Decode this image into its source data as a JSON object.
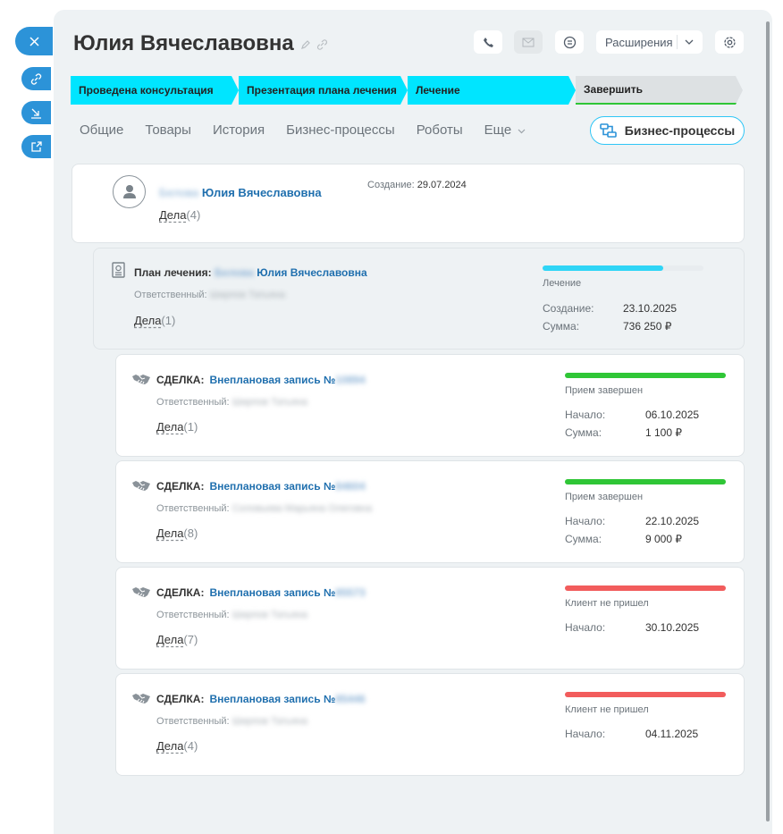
{
  "side": {
    "close_icon": "close-icon",
    "link_icon": "link-icon",
    "download_icon": "download-icon",
    "open_icon": "open-external-icon"
  },
  "header": {
    "title": "Юлия Вячеславовна",
    "extensions_label": "Расширения"
  },
  "stages": [
    {
      "label": "Проведена консультация"
    },
    {
      "label": "Презентация плана лечения"
    },
    {
      "label": "Лечение"
    },
    {
      "label": "Завершить"
    }
  ],
  "tabs": [
    "Общие",
    "Товары",
    "История",
    "Бизнес-процессы",
    "Роботы",
    "Еще"
  ],
  "bp_button": "Бизнес-процессы",
  "contact": {
    "surname_blurred": "Белова",
    "name": "Юлия Вячеславовна",
    "created_label": "Создание:",
    "created": "29.07.2024",
    "deals_label": "Дела",
    "deals_count": "(4)"
  },
  "plan": {
    "prefix": "План лечения:",
    "surname_blurred": "Белова",
    "name": "Юлия Вячеславовна",
    "resp_label": "Ответственный:",
    "resp_blurred": "Ширпов Татьяна",
    "deals_label": "Дела",
    "deals_count": "(1)",
    "stage": "Лечение",
    "progress": 0.75,
    "color": "#2fd5f6",
    "created_label": "Создание:",
    "created": "23.10.2025",
    "sum_label": "Сумма:",
    "sum": "736 250 ₽"
  },
  "deals": [
    {
      "prefix": "СДЕЛКА:",
      "name": "Внеплановая запись №",
      "num_blurred": "10894",
      "resp_label": "Ответственный:",
      "resp_blurred": "Ширпов Татьяна",
      "deals_label": "Дела",
      "deals_count": "(1)",
      "stage": "Прием завершен",
      "color": "#2fc636",
      "start_label": "Начало:",
      "start": "06.10.2025",
      "sum_label": "Сумма:",
      "sum": "1 100 ₽"
    },
    {
      "prefix": "СДЕЛКА:",
      "name": "Внеплановая запись №",
      "num_blurred": "84604",
      "resp_label": "Ответственный:",
      "resp_blurred": "Соловьева Марьяна Олеговна",
      "deals_label": "Дела",
      "deals_count": "(8)",
      "stage": "Прием завершен",
      "color": "#2fc636",
      "start_label": "Начало:",
      "start": "22.10.2025",
      "sum_label": "Сумма:",
      "sum": "9 000 ₽"
    },
    {
      "prefix": "СДЕЛКА:",
      "name": "Внеплановая запись №",
      "num_blurred": "85573",
      "resp_label": "Ответственный:",
      "resp_blurred": "Ширпов Татьяна",
      "deals_label": "Дела",
      "deals_count": "(7)",
      "stage": "Клиент не пришел",
      "color": "#f25c5c",
      "start_label": "Начало:",
      "start": "30.10.2025",
      "sum_label": "",
      "sum": ""
    },
    {
      "prefix": "СДЕЛКА:",
      "name": "Внеплановая запись №",
      "num_blurred": "85446",
      "resp_label": "Ответственный:",
      "resp_blurred": "Ширпов Татьяна",
      "deals_label": "Дела",
      "deals_count": "(4)",
      "stage": "Клиент не пришел",
      "color": "#f25c5c",
      "start_label": "Начало:",
      "start": "04.11.2025",
      "sum_label": "",
      "sum": ""
    }
  ]
}
